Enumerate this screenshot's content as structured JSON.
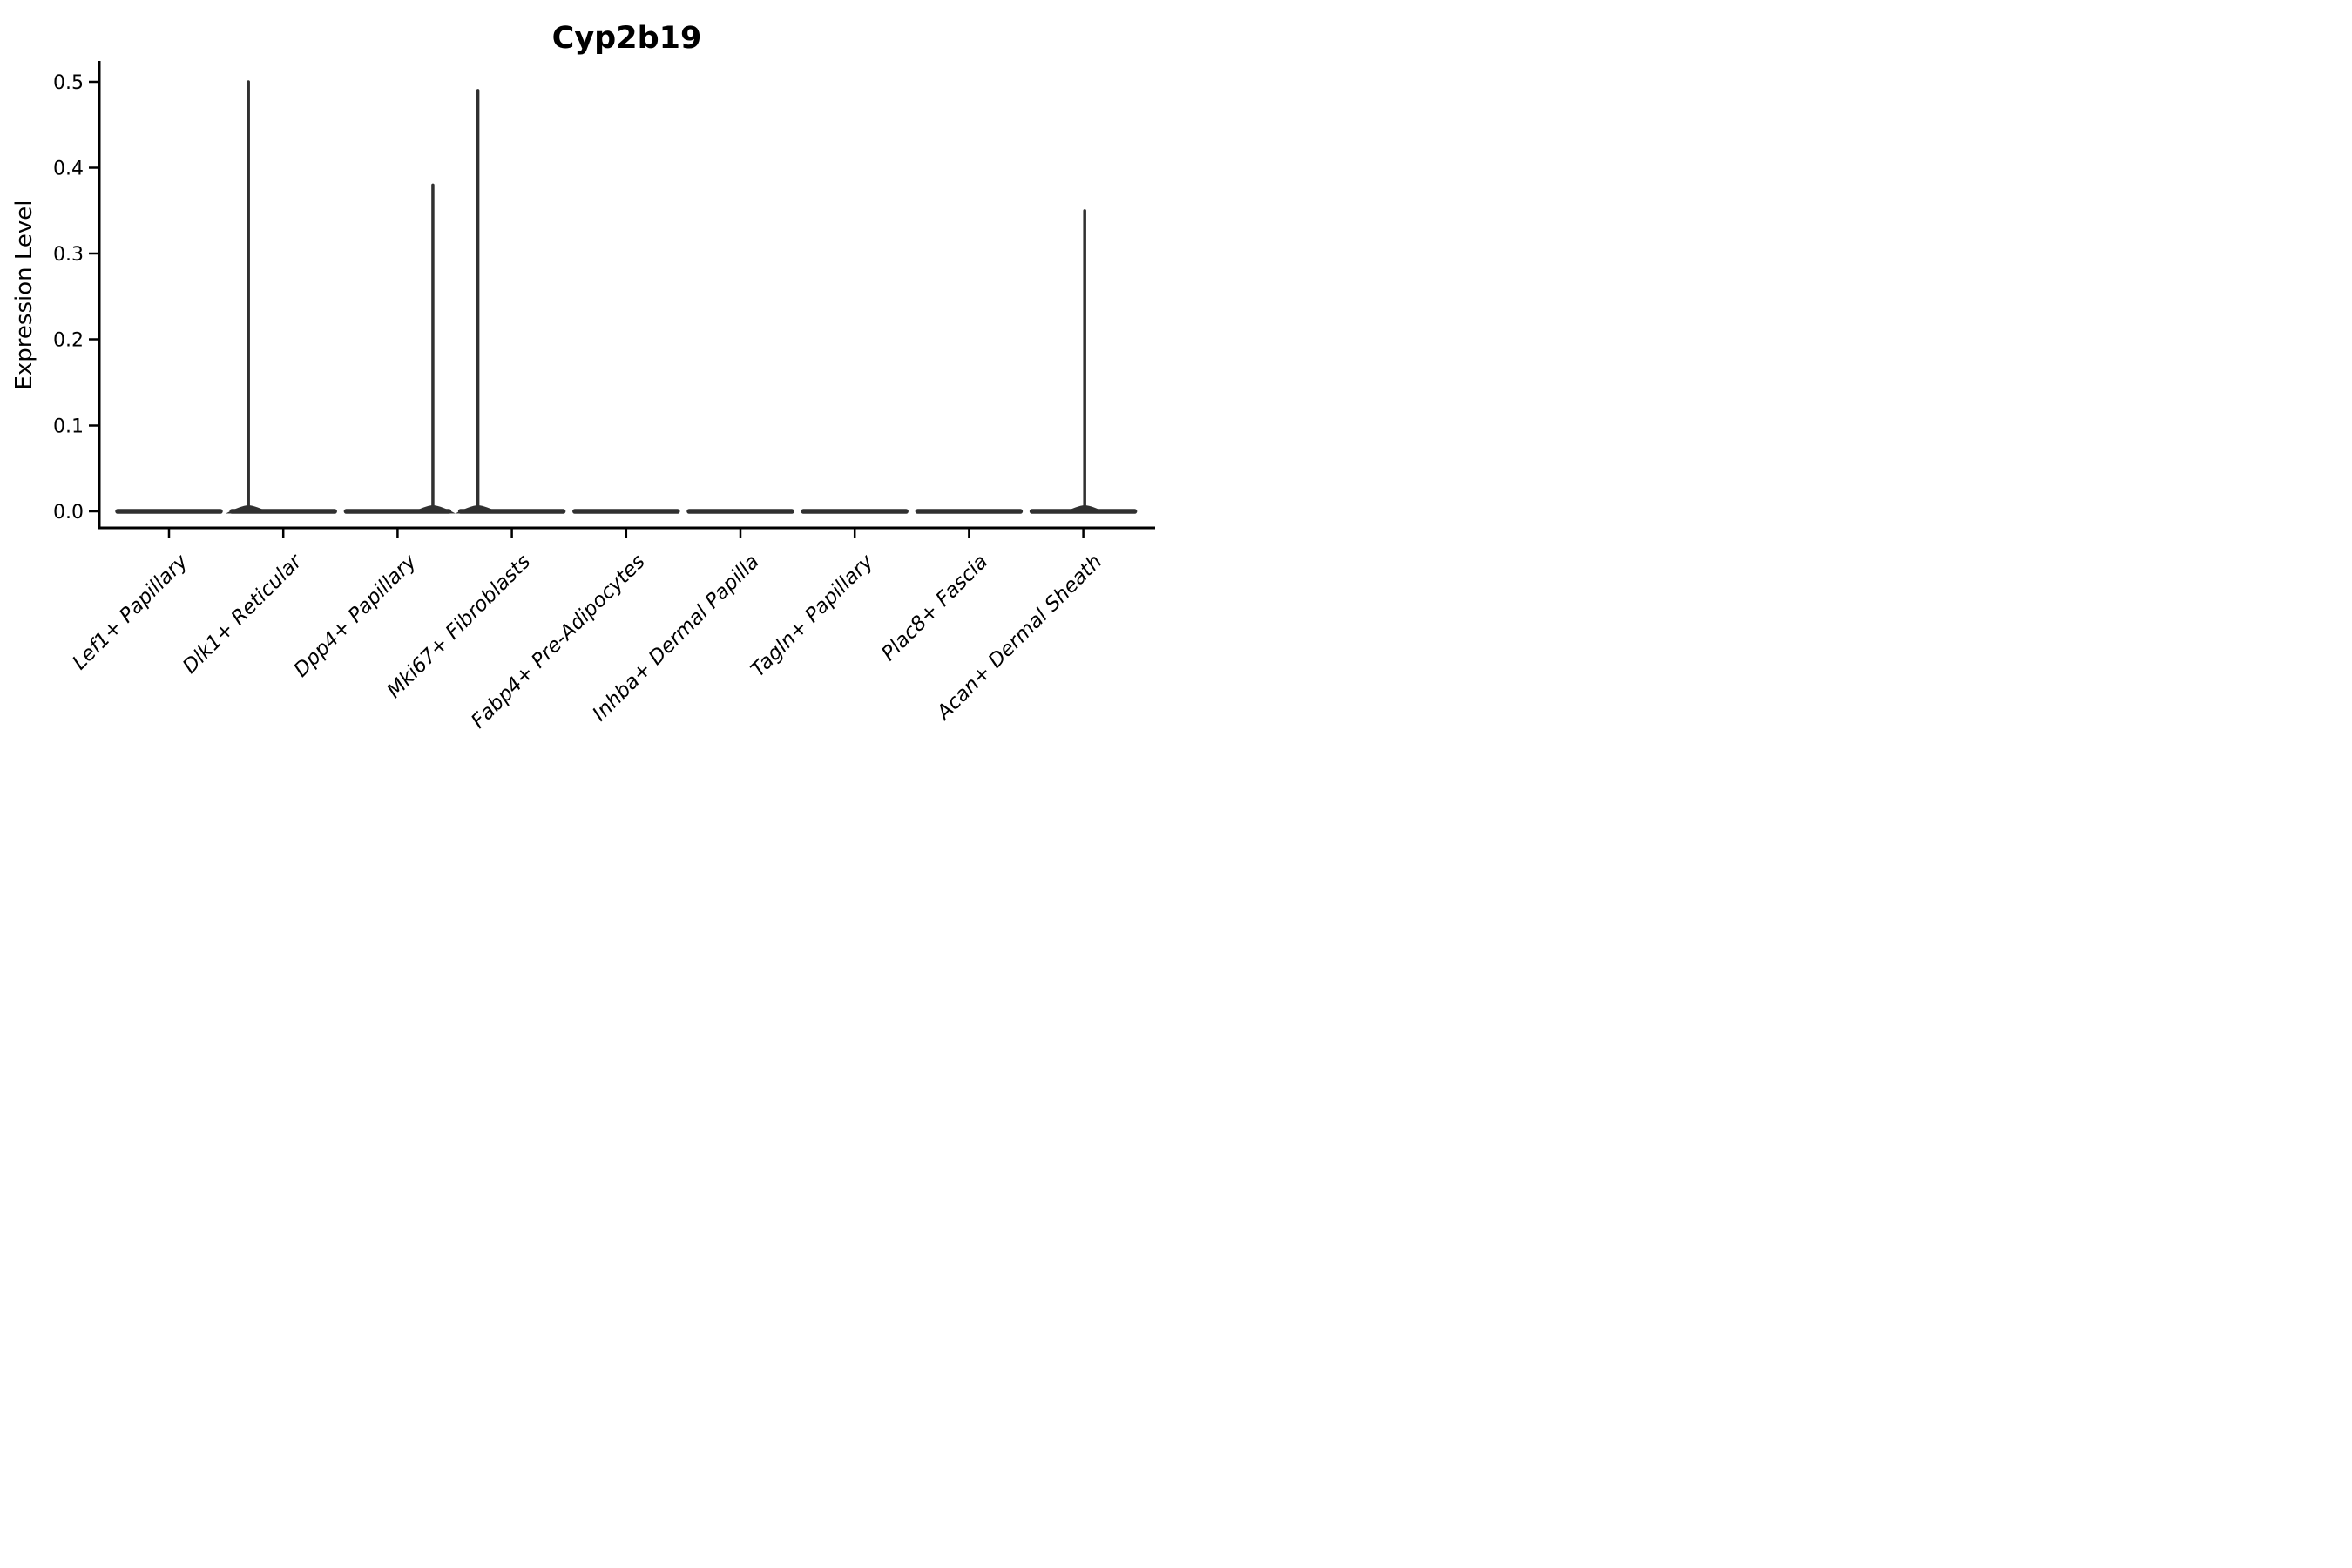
{
  "chart_data": {
    "type": "violin",
    "title": "Cyp2b19",
    "ylabel": "Expression Level",
    "xlabel": "",
    "categories": [
      "Lef1+ Papillary",
      "Dlk1+ Reticular",
      "Dpp4+ Papillary",
      "Mki67+ Fibroblasts",
      "Fabp4+ Pre-Adipocytes",
      "Inhba+ Dermal Papilla",
      "Tagln+ Papillary",
      "Plac8+ Fascia",
      "Acan+ Dermal Sheath"
    ],
    "max_expression": [
      0,
      0.5,
      0.38,
      0.49,
      0,
      0,
      0,
      0,
      0.35
    ],
    "baseline_value": 0.0,
    "ytick_labels": [
      "0.5",
      "0.4",
      "0.3",
      "0.2",
      "0.1",
      "0.0"
    ],
    "yticks": [
      0.5,
      0.4,
      0.3,
      0.2,
      0.1,
      0.0
    ],
    "ylim": [
      -0.018,
      0.524
    ],
    "grid": false,
    "legend": null,
    "spike_offset_slot_fraction": [
      0,
      -0.305,
      0.309,
      -0.297,
      0,
      0,
      0,
      0,
      0.012
    ],
    "colors": {
      "violin": "#303030",
      "axis": "#000000",
      "text": "#000000",
      "background": "#ffffff"
    }
  }
}
